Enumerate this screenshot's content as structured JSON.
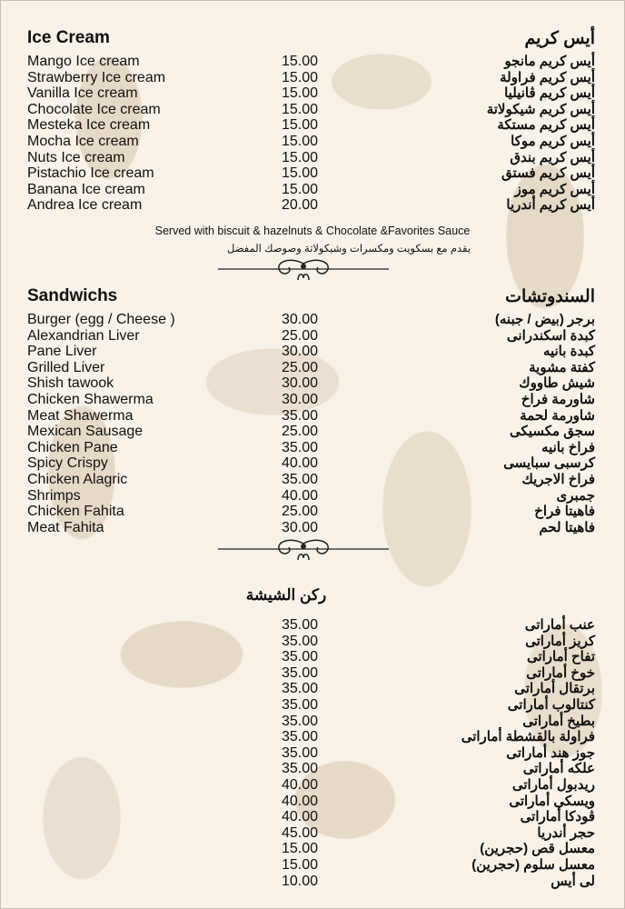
{
  "ice_cream": {
    "title_en": "Ice Cream",
    "title_ar": "أيس كريم",
    "items": [
      {
        "en": "Mango Ice cream",
        "price": "15.00",
        "ar": "أيس كريم مانجو"
      },
      {
        "en": "Strawberry Ice cream",
        "price": "15.00",
        "ar": "أيس كريم فراولة"
      },
      {
        "en": "Vanilla Ice cream",
        "price": "15.00",
        "ar": "أيس كريم ڤانيليا"
      },
      {
        "en": "Chocolate Ice cream",
        "price": "15.00",
        "ar": "أيس كريم شيكولاتة"
      },
      {
        "en": "Mesteka Ice cream",
        "price": "15.00",
        "ar": "أيس كريم مستكة"
      },
      {
        "en": "Mocha Ice cream",
        "price": "15.00",
        "ar": "أيس كريم موكا"
      },
      {
        "en": "Nuts Ice cream",
        "price": "15.00",
        "ar": "أيس كريم بندق"
      },
      {
        "en": "Pistachio Ice cream",
        "price": "15.00",
        "ar": "أيس كريم فستق"
      },
      {
        "en": "Banana Ice cream",
        "price": "15.00",
        "ar": "أيس كريم موز"
      },
      {
        "en": "Andrea Ice cream",
        "price": "20.00",
        "ar": "أيس كريم أندريا"
      }
    ],
    "note_en": "Served with biscuit & hazelnuts & Chocolate &Favorites Sauce",
    "note_ar": "يقدم مع بسكويت ومكسرات وشيكولاتة وصوصك المفضل"
  },
  "sandwiches": {
    "title_en": "Sandwichs",
    "title_ar": "السندوتشات",
    "items": [
      {
        "en": "Burger (egg / Cheese )",
        "price": "30.00",
        "ar": "برجر (بيض / جبنه)"
      },
      {
        "en": "Alexandrian Liver",
        "price": "25.00",
        "ar": "كبدة اسكندرانى"
      },
      {
        "en": "Pane Liver",
        "price": "30.00",
        "ar": "كبدة بانيه"
      },
      {
        "en": "Grilled Liver",
        "price": "25.00",
        "ar": "كفتة مشوية"
      },
      {
        "en": "Shish tawook",
        "price": "30.00",
        "ar": "شيش طاووك"
      },
      {
        "en": "Chicken Shawerma",
        "price": "30.00",
        "ar": "شاورمة فراخ"
      },
      {
        "en": "Meat Shawerma",
        "price": "35.00",
        "ar": "شاورمة لحمة"
      },
      {
        "en": "Mexican Sausage",
        "price": "25.00",
        "ar": "سجق مكسيكى"
      },
      {
        "en": "Chicken Pane",
        "price": "35.00",
        "ar": "فراخ بانيه"
      },
      {
        "en": "Spicy Crispy",
        "price": "40.00",
        "ar": "كرسبى سبايسى"
      },
      {
        "en": "Chicken Alagric",
        "price": "35.00",
        "ar": "فراخ الاجريك"
      },
      {
        "en": "Shrimps",
        "price": "40.00",
        "ar": "جمبرى"
      },
      {
        "en": "Chicken Fahita",
        "price": "25.00",
        "ar": "فاهيتا فراخ"
      },
      {
        "en": "Meat Fahita",
        "price": "30.00",
        "ar": "فاهيتا لحم"
      }
    ]
  },
  "shisha": {
    "title_ar": "ركن الشيشة",
    "items": [
      {
        "price": "35.00",
        "ar": "عنب أماراتى"
      },
      {
        "price": "35.00",
        "ar": "كريز أماراتى"
      },
      {
        "price": "35.00",
        "ar": "تفاح أماراتى"
      },
      {
        "price": "35.00",
        "ar": "خوخ أماراتى"
      },
      {
        "price": "35.00",
        "ar": "برتقال أماراتى"
      },
      {
        "price": "35.00",
        "ar": "كنتالوب أماراتى"
      },
      {
        "price": "35.00",
        "ar": "بطيخ أماراتى"
      },
      {
        "price": "35.00",
        "ar": "فراولة بالقشطة أماراتى"
      },
      {
        "price": "35.00",
        "ar": "جوز هند أماراتى"
      },
      {
        "price": "35.00",
        "ar": "علكه أماراتى"
      },
      {
        "price": "40.00",
        "ar": "ريدبول أماراتى"
      },
      {
        "price": "40.00",
        "ar": "ويسكى أماراتى"
      },
      {
        "price": "40.00",
        "ar": "ڤودكا أماراتى"
      },
      {
        "price": "45.00",
        "ar": "حجر أندريا"
      },
      {
        "price": "15.00",
        "ar": "معسل قص (حجرين)"
      },
      {
        "price": "15.00",
        "ar": "معسل سلوم (حجرين)"
      },
      {
        "price": "10.00",
        "ar": "لى أيس"
      }
    ]
  },
  "colors": {
    "background": "#f8f2e8",
    "pattern": "#e6d9c6",
    "text": "#111111"
  }
}
